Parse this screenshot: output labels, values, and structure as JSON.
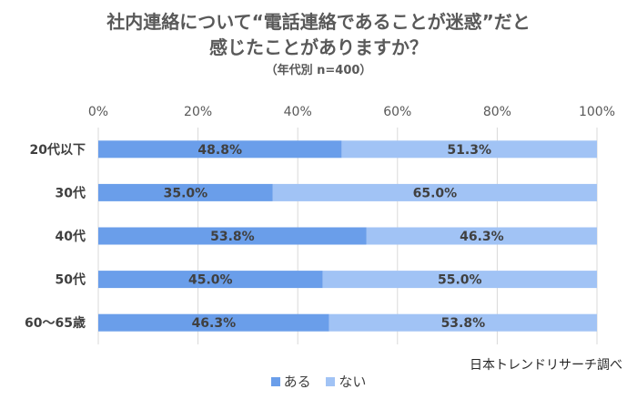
{
  "title_line1": "社内連絡について“電話連絡であることが迷惑”だと",
  "title_line2": "感じたことがありますか？",
  "subtitle": "（年代別  n=400）",
  "source": "日本トレンドリサーチ調べ",
  "colors": {
    "aru": "#6a9eea",
    "nai": "#a1c3f5"
  },
  "chart_data": {
    "type": "bar",
    "orientation": "horizontal",
    "stacked": "100%",
    "categories": [
      "20代以下",
      "30代",
      "40代",
      "50代",
      "60〜65歳"
    ],
    "series": [
      {
        "name": "ある",
        "values": [
          48.8,
          35.0,
          53.8,
          45.0,
          46.3
        ],
        "labels": [
          "48.8%",
          "35.0%",
          "53.8%",
          "45.0%",
          "46.3%"
        ]
      },
      {
        "name": "ない",
        "values": [
          51.3,
          65.0,
          46.3,
          55.0,
          53.8
        ],
        "labels": [
          "51.3%",
          "65.0%",
          "46.3%",
          "55.0%",
          "53.8%"
        ]
      }
    ],
    "xticks": [
      "0%",
      "20%",
      "40%",
      "60%",
      "80%",
      "100%"
    ],
    "xlim": [
      0,
      100
    ],
    "grid": true,
    "legend": "bottom"
  }
}
